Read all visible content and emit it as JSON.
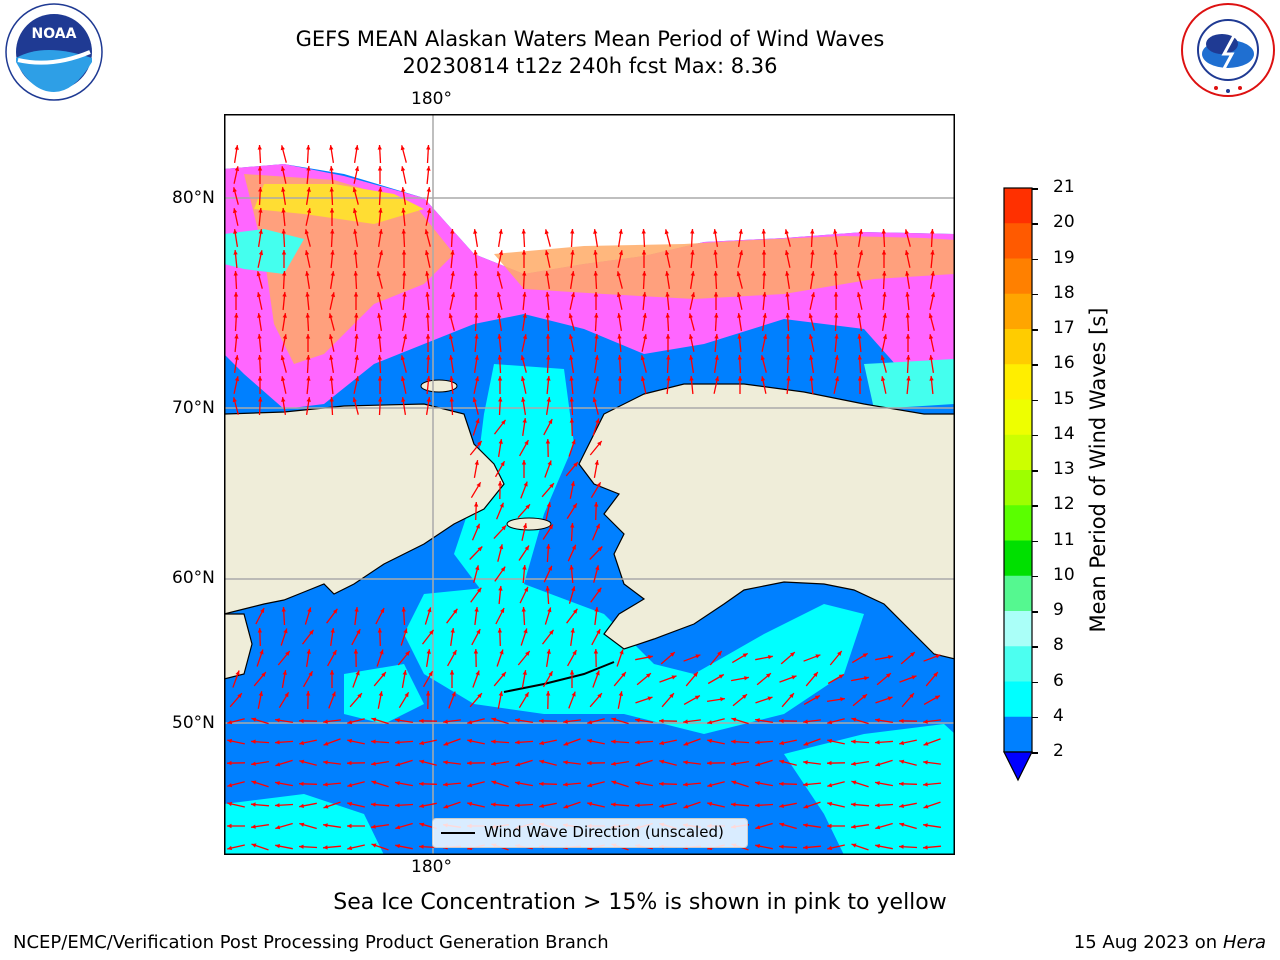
{
  "title_line1": "GEFS MEAN Alaskan Waters Mean Period of Wind Waves",
  "title_line2": "20230814 t12z 240h fcst   Max: 8.36",
  "map": {
    "top_lon_label": "180°",
    "bottom_lon_label": "180°",
    "lat_labels": [
      "80°N",
      "70°N",
      "60°N",
      "50°N"
    ]
  },
  "legend_label": "Wind Wave Direction (unscaled)",
  "colorbar": {
    "label": "Mean Period of Wind Waves [s]",
    "ticks": [
      "21",
      "20",
      "19",
      "18",
      "17",
      "16",
      "15",
      "14",
      "13",
      "12",
      "11",
      "10",
      "9",
      "8",
      "6",
      "4",
      "2"
    ],
    "colors": [
      "#ff0000",
      "#ff3000",
      "#ff5a00",
      "#ff8000",
      "#ffa500",
      "#ffcc00",
      "#ffee00",
      "#eeff00",
      "#ccff00",
      "#9eff00",
      "#5aff00",
      "#00e000",
      "#55f890",
      "#aafff8",
      "#4cfff0",
      "#00ffff",
      "#0080ff",
      "#0000ff"
    ]
  },
  "caption": "Sea Ice Concentration > 15% is shown in pink to yellow",
  "footer_left": "NCEP/EMC/Verification Post Processing Product Generation Branch",
  "footer_date": "15 Aug 2023 on",
  "footer_host": "Hera",
  "logos": {
    "noaa_text": "NOAA"
  }
}
